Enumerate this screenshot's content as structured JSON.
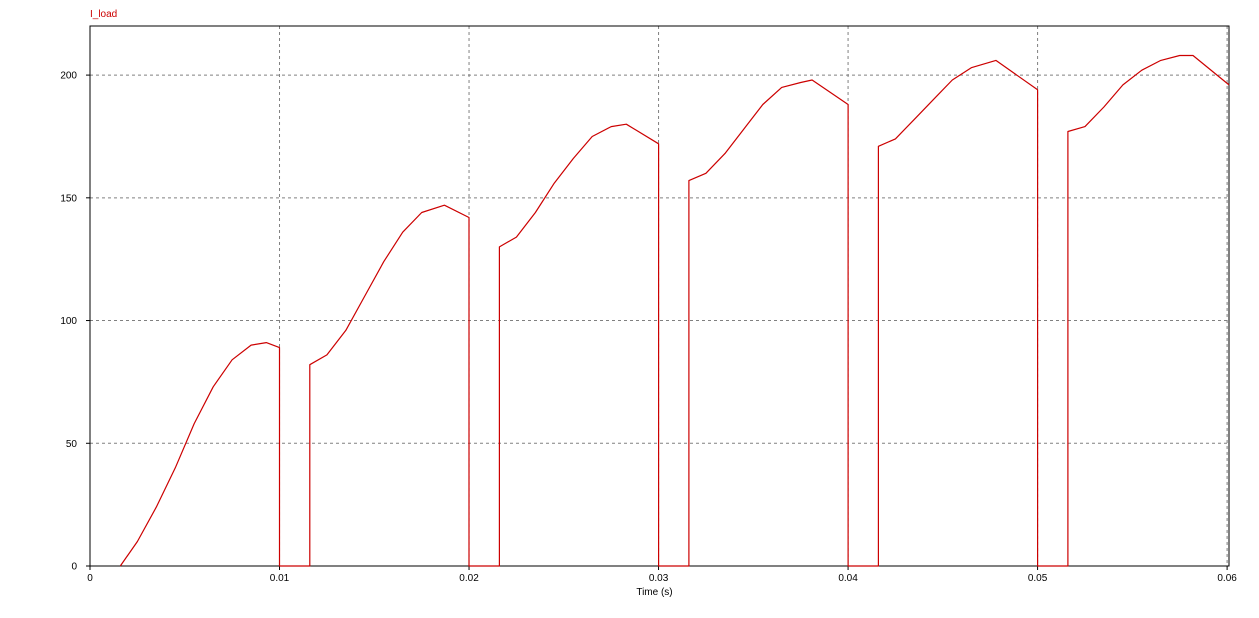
{
  "chart_data": {
    "type": "line",
    "xlabel": "Time (s)",
    "ylabel": "",
    "xlim": [
      0,
      0.0601
    ],
    "ylim": [
      0,
      220
    ],
    "x_ticks": [
      0,
      0.01,
      0.02,
      0.03,
      0.04,
      0.05,
      0.06
    ],
    "x_tick_labels": [
      "0",
      "0.01",
      "0.02",
      "0.03",
      "0.04",
      "0.05",
      "0.06"
    ],
    "y_ticks": [
      0,
      50,
      100,
      150,
      200
    ],
    "y_tick_labels": [
      "0",
      "50",
      "100",
      "150",
      "200"
    ],
    "grid": true,
    "legend": "top-left",
    "series": [
      {
        "name": "I_load",
        "color": "#cc0000",
        "x": [
          0.0016,
          0.0025,
          0.0035,
          0.0045,
          0.0055,
          0.0065,
          0.0075,
          0.0085,
          0.0093,
          0.01,
          0.01,
          0.0116,
          0.0116,
          0.0125,
          0.0135,
          0.0145,
          0.0155,
          0.0165,
          0.0175,
          0.0187,
          0.02,
          0.02,
          0.0216,
          0.0216,
          0.0225,
          0.0235,
          0.0245,
          0.0255,
          0.0265,
          0.0275,
          0.0283,
          0.03,
          0.03,
          0.0316,
          0.0316,
          0.0325,
          0.0335,
          0.0345,
          0.0355,
          0.0365,
          0.0375,
          0.0381,
          0.04,
          0.04,
          0.0416,
          0.0416,
          0.0425,
          0.0435,
          0.0445,
          0.0455,
          0.0465,
          0.0478,
          0.05,
          0.05,
          0.0516,
          0.0516,
          0.0525,
          0.0535,
          0.0545,
          0.0555,
          0.0565,
          0.0575,
          0.0582,
          0.0601
        ],
        "y": [
          0,
          10,
          24,
          40,
          58,
          73,
          84,
          90,
          91,
          89,
          0,
          0,
          82,
          86,
          96,
          110,
          124,
          136,
          144,
          147,
          142,
          0,
          0,
          130,
          134,
          144,
          156,
          166,
          175,
          179,
          180,
          172,
          0,
          0,
          157,
          160,
          168,
          178,
          188,
          195,
          197,
          198,
          188,
          0,
          0,
          171,
          174,
          182,
          190,
          198,
          203,
          206,
          194,
          0,
          0,
          177,
          179,
          187,
          196,
          202,
          206,
          208,
          208,
          196
        ]
      }
    ]
  }
}
